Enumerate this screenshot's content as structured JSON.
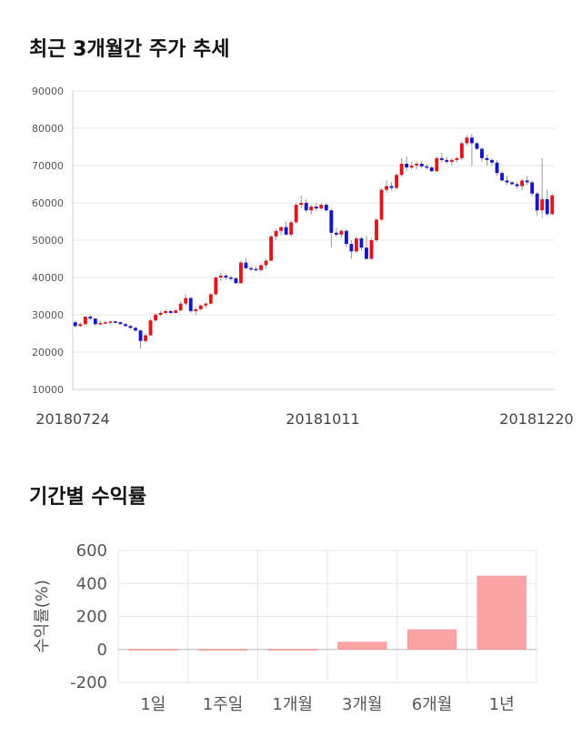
{
  "page": {
    "title_price": "최근 3개월간 주가 추세",
    "title_returns": "기간별 수익률"
  },
  "colors": {
    "up": "#e0161a",
    "down": "#1515c8",
    "return_bar": "#f9a3a3",
    "grid": "#e6e6e6"
  },
  "chart_data": [
    {
      "type": "candlestick",
      "title": "최근 3개월간 주가 추세",
      "ylim": [
        10000,
        90000
      ],
      "yticks": [
        "90000",
        "80000",
        "70000",
        "60000",
        "50000",
        "40000",
        "30000",
        "20000",
        "10000"
      ],
      "xticks": [
        "20180724",
        "20181011",
        "20181220"
      ],
      "grid": true,
      "series": [
        [
          28000,
          28500,
          26500,
          27000
        ],
        [
          27000,
          28000,
          26800,
          27500
        ],
        [
          27500,
          29500,
          27200,
          29500
        ],
        [
          29500,
          30000,
          28500,
          29000
        ],
        [
          29000,
          29000,
          27000,
          27500
        ],
        [
          27500,
          28500,
          27200,
          27800
        ],
        [
          27800,
          28300,
          27500,
          28000
        ],
        [
          28000,
          28500,
          27600,
          28200
        ],
        [
          28200,
          28600,
          27800,
          28000
        ],
        [
          28000,
          28200,
          27400,
          27500
        ],
        [
          27500,
          27800,
          26800,
          27000
        ],
        [
          27000,
          27300,
          26200,
          26500
        ],
        [
          26500,
          26800,
          25300,
          25800
        ],
        [
          25800,
          26000,
          21000,
          23000
        ],
        [
          23000,
          25000,
          22500,
          24500
        ],
        [
          24500,
          29000,
          24300,
          28500
        ],
        [
          28500,
          30500,
          28200,
          30000
        ],
        [
          30000,
          31200,
          29600,
          30500
        ],
        [
          30500,
          31500,
          30100,
          31000
        ],
        [
          31000,
          31300,
          30300,
          30500
        ],
        [
          30500,
          31600,
          30300,
          31200
        ],
        [
          31200,
          33500,
          30800,
          33000
        ],
        [
          33000,
          35500,
          32500,
          34500
        ],
        [
          34500,
          34800,
          30500,
          31000
        ],
        [
          31000,
          31800,
          30000,
          31500
        ],
        [
          31500,
          32800,
          31200,
          32500
        ],
        [
          32500,
          33300,
          31800,
          33000
        ],
        [
          33000,
          35800,
          32800,
          35500
        ],
        [
          35500,
          40500,
          35200,
          40000
        ],
        [
          40000,
          41200,
          39000,
          40500
        ],
        [
          40500,
          41000,
          39400,
          40000
        ],
        [
          40000,
          40600,
          39200,
          39800
        ],
        [
          39800,
          40200,
          38300,
          38500
        ],
        [
          38500,
          44500,
          38200,
          44000
        ],
        [
          44000,
          45200,
          42200,
          42500
        ],
        [
          42500,
          43200,
          41800,
          42300
        ],
        [
          42300,
          43000,
          41700,
          42000
        ],
        [
          42000,
          43600,
          41600,
          43300
        ],
        [
          43300,
          45000,
          42300,
          44500
        ],
        [
          44500,
          51500,
          44300,
          51000
        ],
        [
          51000,
          53000,
          50000,
          52500
        ],
        [
          52500,
          53800,
          51300,
          53500
        ],
        [
          53500,
          55000,
          51200,
          51500
        ],
        [
          51500,
          55300,
          51000,
          54800
        ],
        [
          54800,
          60000,
          54500,
          59500
        ],
        [
          59500,
          62000,
          58600,
          60000
        ],
        [
          60000,
          61000,
          57600,
          58000
        ],
        [
          58000,
          59500,
          56800,
          59000
        ],
        [
          59000,
          60000,
          57800,
          58500
        ],
        [
          58500,
          60000,
          58200,
          59500
        ],
        [
          59500,
          60000,
          57600,
          58000
        ],
        [
          58000,
          58500,
          48000,
          52000
        ],
        [
          52000,
          53300,
          50800,
          51500
        ],
        [
          51500,
          53000,
          50600,
          52500
        ],
        [
          52500,
          53000,
          48000,
          49000
        ],
        [
          49000,
          50000,
          45000,
          47000
        ],
        [
          47000,
          51000,
          46600,
          50500
        ],
        [
          50500,
          51000,
          47200,
          48000
        ],
        [
          48000,
          51200,
          44800,
          45000
        ],
        [
          45000,
          50500,
          44800,
          50000
        ],
        [
          50000,
          56000,
          49500,
          55500
        ],
        [
          55500,
          64000,
          55300,
          63500
        ],
        [
          63500,
          66000,
          62800,
          64500
        ],
        [
          64500,
          65500,
          63300,
          64000
        ],
        [
          64000,
          68000,
          63500,
          67500
        ],
        [
          67500,
          72000,
          67000,
          70500
        ],
        [
          70500,
          72500,
          68500,
          69500
        ],
        [
          69500,
          71000,
          69000,
          70000
        ],
        [
          70000,
          71000,
          69000,
          70500
        ],
        [
          70500,
          71200,
          69300,
          69800
        ],
        [
          69800,
          70500,
          68800,
          69500
        ],
        [
          69500,
          70000,
          68300,
          68500
        ],
        [
          68500,
          72500,
          68200,
          72000
        ],
        [
          72000,
          73500,
          70800,
          71500
        ],
        [
          71500,
          72300,
          70500,
          71000
        ],
        [
          71000,
          72000,
          70000,
          71500
        ],
        [
          71500,
          72500,
          70800,
          72000
        ],
        [
          72000,
          76500,
          71500,
          76000
        ],
        [
          76000,
          78000,
          75300,
          77500
        ],
        [
          77500,
          78500,
          70000,
          76000
        ],
        [
          76000,
          76500,
          74200,
          74500
        ],
        [
          74500,
          75000,
          71000,
          72000
        ],
        [
          72000,
          73000,
          70000,
          71500
        ],
        [
          71500,
          72000,
          70000,
          70800
        ],
        [
          70800,
          71500,
          67300,
          68000
        ],
        [
          68000,
          68500,
          65800,
          66000
        ],
        [
          66000,
          67300,
          64800,
          65500
        ],
        [
          65500,
          66000,
          64800,
          65000
        ],
        [
          65000,
          65500,
          63800,
          64500
        ],
        [
          64500,
          66500,
          63300,
          66000
        ],
        [
          66000,
          67200,
          64800,
          65500
        ],
        [
          65500,
          66000,
          61800,
          62500
        ],
        [
          62500,
          63000,
          56500,
          58000
        ],
        [
          58000,
          72000,
          56000,
          61000
        ],
        [
          61000,
          63500,
          56500,
          57000
        ],
        [
          57000,
          62500,
          56800,
          62000
        ]
      ]
    },
    {
      "type": "bar",
      "title": "기간별 수익률",
      "ylabel": "수익률(%)",
      "ylim": [
        -200,
        600
      ],
      "yticks": [
        "600",
        "400",
        "200",
        "0",
        "-200"
      ],
      "categories": [
        "1일",
        "1주일",
        "1개월",
        "3개월",
        "6개월",
        "1년"
      ],
      "values": [
        0,
        -3,
        -5,
        44,
        120,
        445
      ],
      "grid": true
    }
  ]
}
